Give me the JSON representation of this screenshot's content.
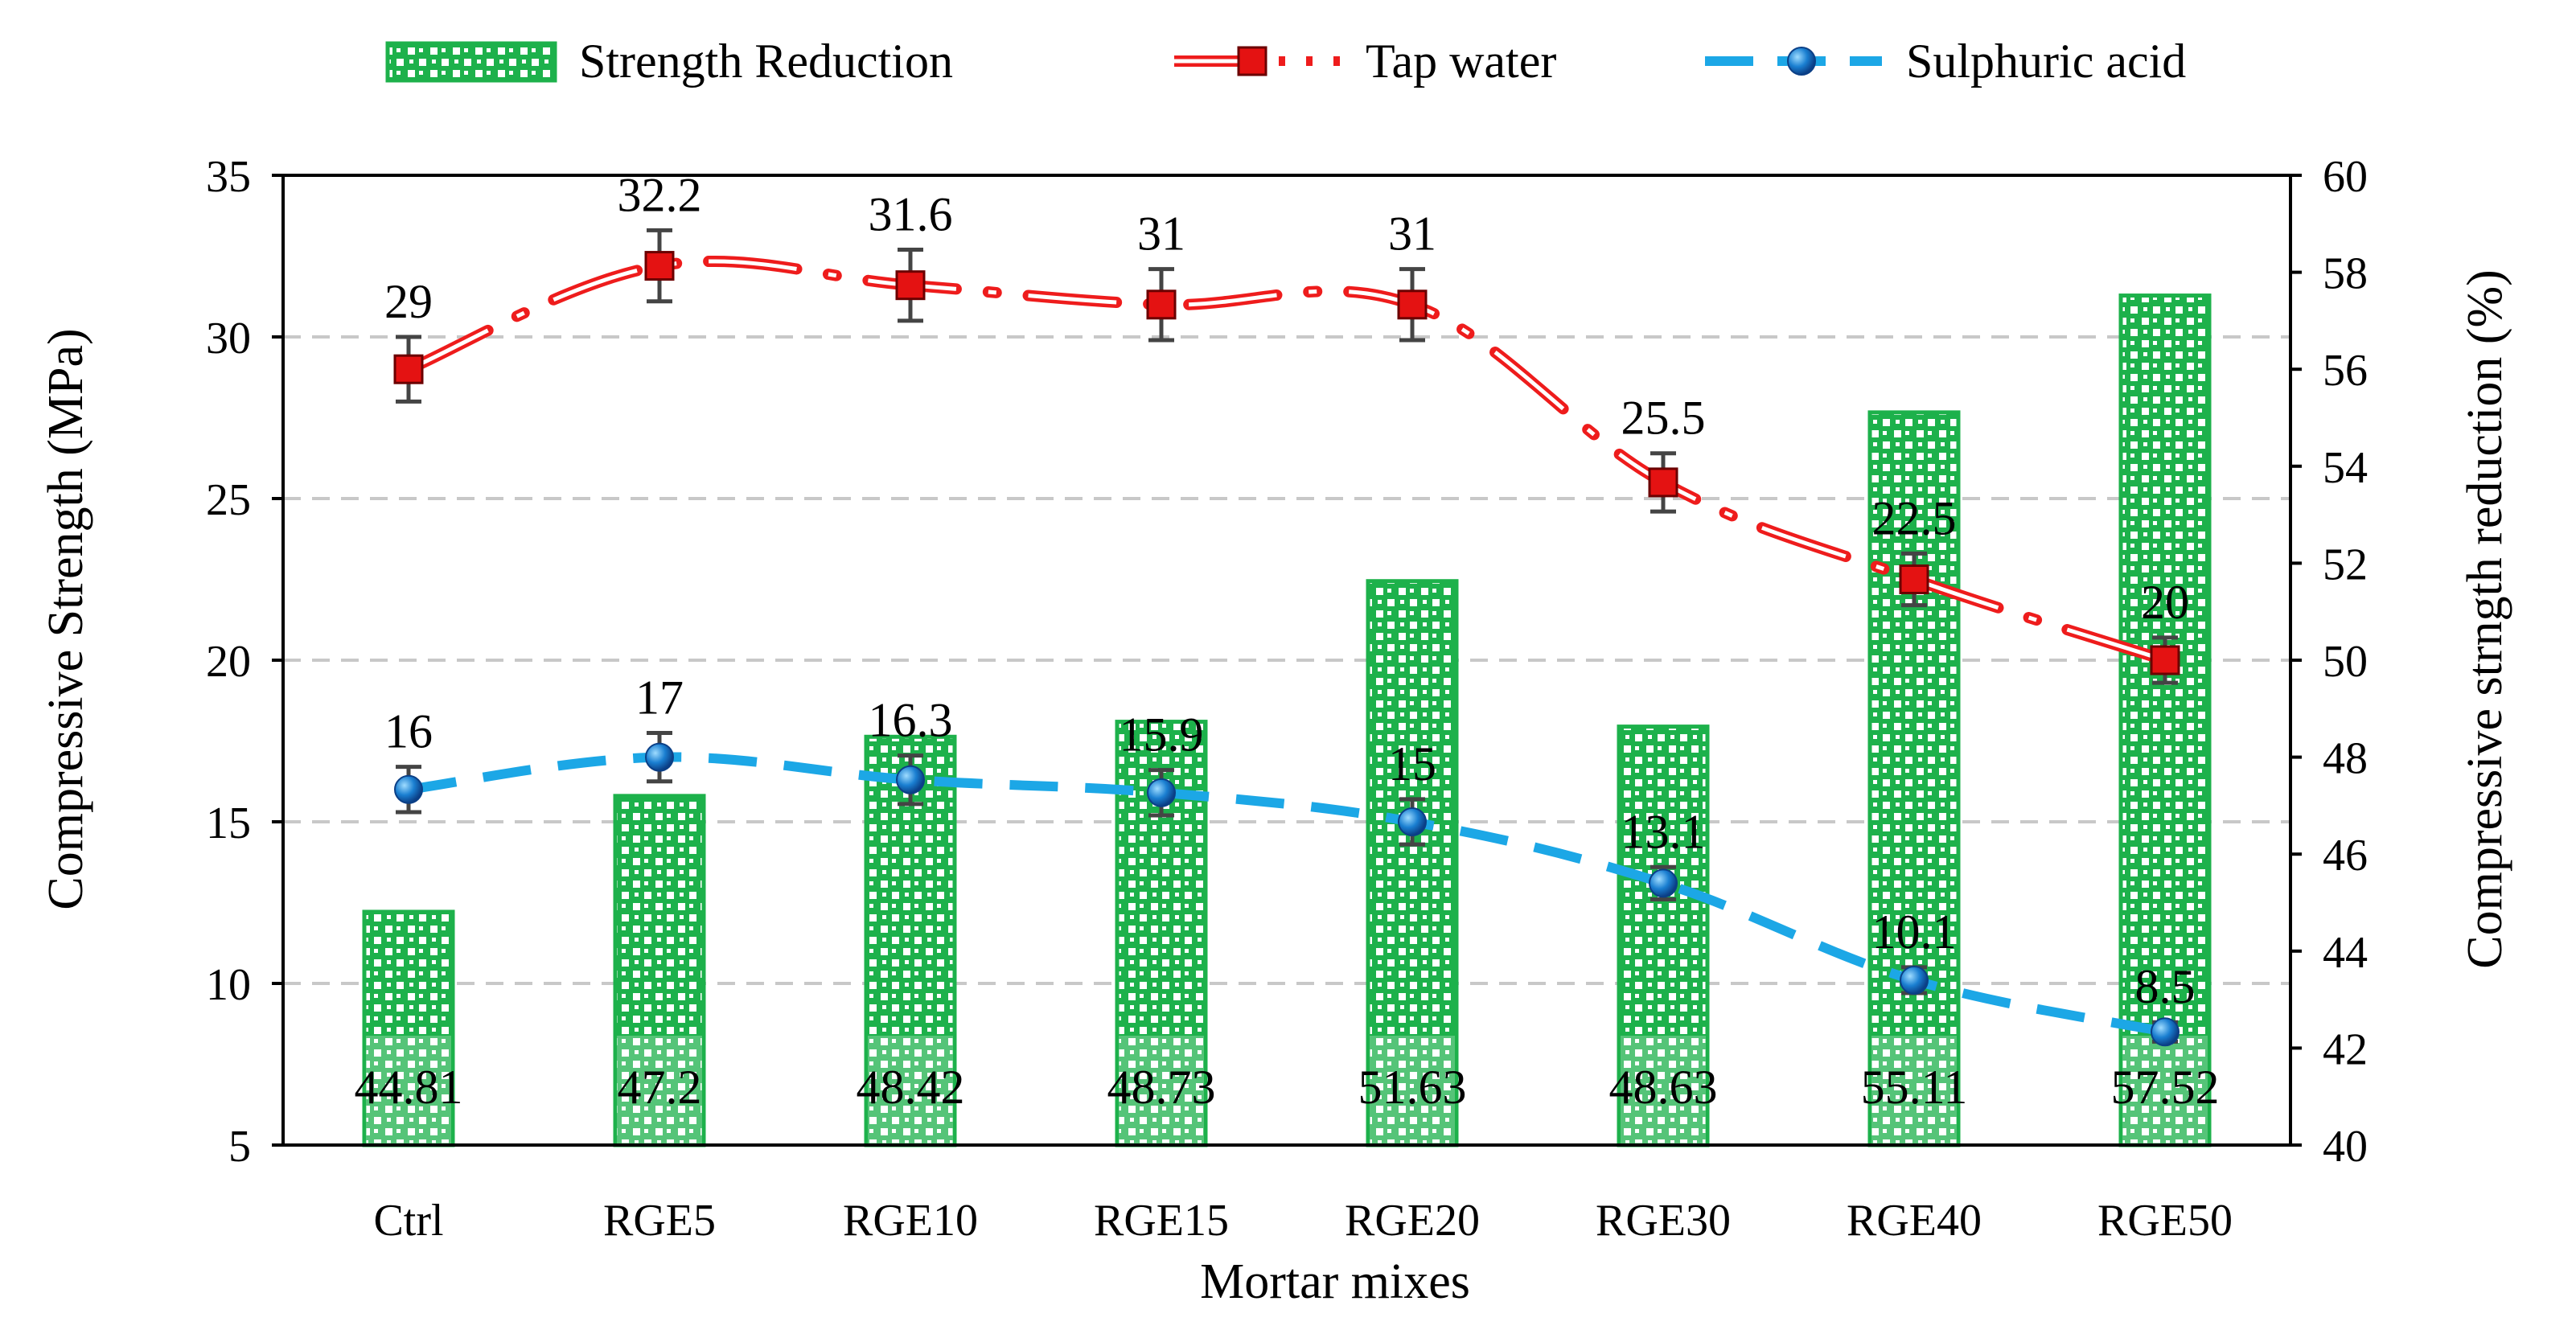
{
  "chart_data": {
    "type": "bar",
    "categories": [
      "Ctrl",
      "RGE5",
      "RGE10",
      "RGE15",
      "RGE20",
      "RGE30",
      "RGE40",
      "RGE50"
    ],
    "series": [
      {
        "name": "Strength Reduction",
        "kind": "bar",
        "axis": "right",
        "values": [
          44.81,
          47.2,
          48.42,
          48.73,
          51.63,
          48.63,
          55.11,
          57.52
        ],
        "labels": [
          "44.81",
          "47.2",
          "48.42",
          "48.73",
          "51.63",
          "48.63",
          "55.11",
          "57.52"
        ],
        "color": "#1db14b"
      },
      {
        "name": "Tap water",
        "kind": "line",
        "axis": "left",
        "values": [
          29,
          32.2,
          31.6,
          31,
          31,
          25.5,
          22.5,
          20
        ],
        "labels": [
          "29",
          "32.2",
          "31.6",
          "31",
          "31",
          "25.5",
          "22.5",
          "20"
        ],
        "error": [
          1,
          1.1,
          1.1,
          1.1,
          1.1,
          0.9,
          0.8,
          0.7
        ],
        "color": "#ee1c1c"
      },
      {
        "name": "Sulphuric acid",
        "kind": "line",
        "axis": "left",
        "values": [
          16,
          17,
          16.3,
          15.9,
          15,
          13.1,
          10.1,
          8.5
        ],
        "labels": [
          "16",
          "17",
          "16.3",
          "15.9",
          "15",
          "13.1",
          "10.1",
          "8.5"
        ],
        "error": [
          0.7,
          0.75,
          0.75,
          0.7,
          0.7,
          0.5,
          0.4,
          0.3
        ],
        "color": "#1ca7e6"
      }
    ],
    "xlabel": "Mortar mixes",
    "ylabel": "Compressive Strength (MPa)",
    "ylabel_right": "Compressive strngth reduction (%)",
    "ylim": [
      5,
      35
    ],
    "yticks": [
      "5",
      "10",
      "15",
      "20",
      "25",
      "30",
      "35"
    ],
    "ylim_right": [
      40,
      60
    ],
    "yticks_right": [
      "40",
      "42",
      "44",
      "46",
      "48",
      "50",
      "52",
      "54",
      "56",
      "58",
      "60"
    ],
    "grid": true,
    "legend_position": "top"
  }
}
